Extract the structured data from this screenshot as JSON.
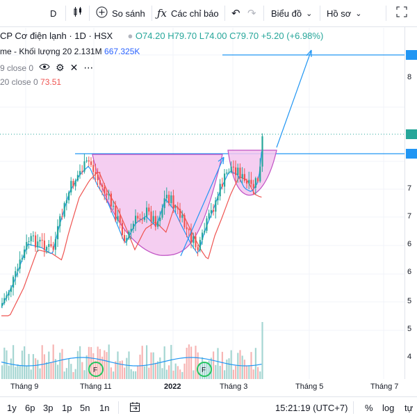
{
  "toolbar": {
    "interval": "D",
    "compare_label": "So sánh",
    "indicators_label": "Các chỉ báo",
    "chart_label": "Biểu đồ",
    "profile_label": "Hồ sơ"
  },
  "legend": {
    "symbol": "CP Cơ điện lạnh · 1D · HSX",
    "open": "O74.20",
    "high": "H79.70",
    "low": "L74.00",
    "close": "C79.70",
    "change": "+5.20 (+6.98%)",
    "volume_label": "me - Khối lượng 20",
    "volume_value": "2.131M",
    "volume_ma": "667.325K",
    "ma1_label": "9 close 0",
    "ma2_label": "20 close 0",
    "ma2_value": "73.51"
  },
  "time_axis": [
    "Tháng 9",
    "Tháng 11",
    "2022",
    "Tháng 3",
    "Tháng 5",
    "Tháng 7"
  ],
  "price_axis": [
    "8",
    "7",
    "7",
    "6",
    "6",
    "5",
    "5",
    "4"
  ],
  "bottom_bar": {
    "ranges": [
      "1y",
      "6p",
      "3p",
      "1p",
      "5n",
      "1n"
    ],
    "time": "15:21:19 (UTC+7)",
    "percent": "%",
    "log": "log",
    "auto": "tự"
  },
  "colors": {
    "up": "#26a69a",
    "down": "#ef5350",
    "ma_fast": "#2196f3",
    "ma_slow": "#ef5350",
    "cup_fill": "#f3c6ef",
    "cup_line": "#c052c4",
    "accent": "#2962ff"
  }
}
